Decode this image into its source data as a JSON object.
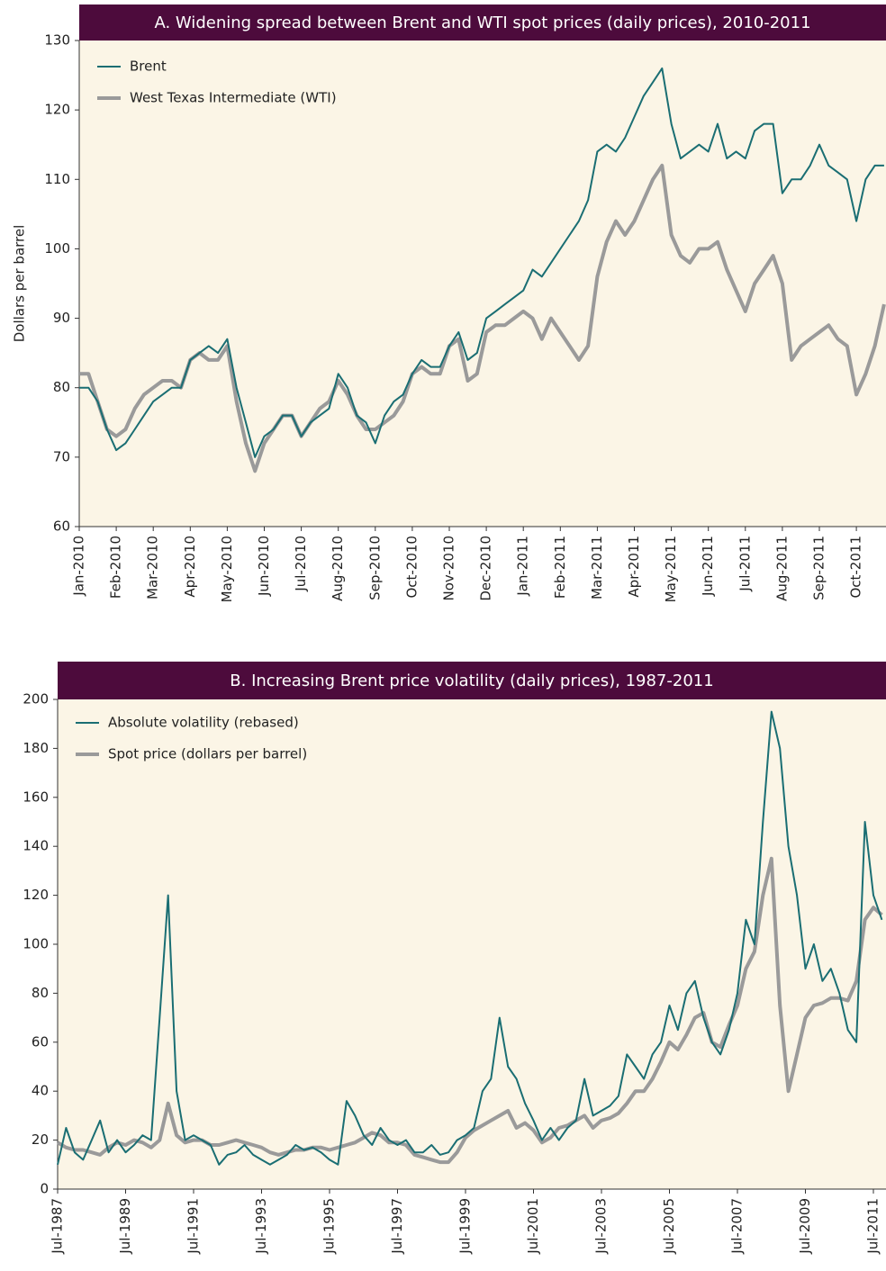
{
  "chart_data": [
    {
      "type": "line",
      "title": "A.  Widening spread between Brent and WTI spot prices (daily prices), 2010-2011",
      "y_label": "Dollars per barrel",
      "categories": [
        "Jan-2010",
        null,
        null,
        null,
        "Feb-2010",
        null,
        null,
        null,
        "Mar-2010",
        null,
        null,
        null,
        "Apr-2010",
        null,
        null,
        null,
        "May-2010",
        null,
        null,
        null,
        "Jun-2010",
        null,
        null,
        null,
        "Jul-2010",
        null,
        null,
        null,
        "Aug-2010",
        null,
        null,
        null,
        "Sep-2010",
        null,
        null,
        null,
        "Oct-2010",
        null,
        null,
        null,
        "Nov-2010",
        null,
        null,
        null,
        "Dec-2010",
        null,
        null,
        null,
        "Jan-2011",
        null,
        null,
        null,
        "Feb-2011",
        null,
        null,
        null,
        "Mar-2011",
        null,
        null,
        null,
        "Apr-2011",
        null,
        null,
        null,
        "May-2011",
        null,
        null,
        null,
        "Jun-2011",
        null,
        null,
        null,
        "Jul-2011",
        null,
        null,
        null,
        "Aug-2011",
        null,
        null,
        null,
        "Sep-2011",
        null,
        null,
        null,
        "Oct-2011",
        null,
        null,
        null
      ],
      "series": [
        {
          "name": "Brent",
          "color": "#1a6e73",
          "width": 2,
          "values": [
            80,
            80,
            78,
            74,
            71,
            72,
            74,
            76,
            78,
            79,
            80,
            80,
            84,
            85,
            86,
            85,
            87,
            80,
            75,
            70,
            73,
            74,
            76,
            76,
            73,
            75,
            76,
            77,
            82,
            80,
            76,
            75,
            72,
            76,
            78,
            79,
            82,
            84,
            83,
            83,
            86,
            88,
            84,
            85,
            90,
            91,
            92,
            93,
            94,
            97,
            96,
            98,
            100,
            102,
            104,
            107,
            114,
            115,
            114,
            116,
            119,
            122,
            124,
            126,
            118,
            113,
            114,
            115,
            114,
            118,
            113,
            114,
            113,
            117,
            118,
            118,
            108,
            110,
            110,
            112,
            115,
            112,
            111,
            110,
            104,
            110,
            112,
            112
          ]
        },
        {
          "name": "West Texas Intermediate (WTI)",
          "color": "#9a9a9a",
          "width": 4,
          "values": [
            82,
            82,
            78,
            74,
            73,
            74,
            77,
            79,
            80,
            81,
            81,
            80,
            84,
            85,
            84,
            84,
            86,
            78,
            72,
            68,
            72,
            74,
            76,
            76,
            73,
            75,
            77,
            78,
            81,
            79,
            76,
            74,
            74,
            75,
            76,
            78,
            82,
            83,
            82,
            82,
            86,
            87,
            81,
            82,
            88,
            89,
            89,
            90,
            91,
            90,
            87,
            90,
            88,
            86,
            84,
            86,
            96,
            101,
            104,
            102,
            104,
            107,
            110,
            112,
            102,
            99,
            98,
            100,
            100,
            101,
            97,
            94,
            91,
            95,
            97,
            99,
            95,
            84,
            86,
            87,
            88,
            89,
            87,
            86,
            79,
            82,
            86,
            92
          ]
        }
      ],
      "ylim": [
        60,
        130
      ],
      "yticks": [
        60,
        70,
        80,
        90,
        100,
        110,
        120,
        130
      ]
    },
    {
      "type": "line",
      "title": "B.  Increasing Brent price volatility (daily prices), 1987-2011",
      "categories": [
        "Jul-1987",
        null,
        null,
        null,
        null,
        null,
        null,
        null,
        "Jul-1989",
        null,
        null,
        null,
        null,
        null,
        null,
        null,
        "Jul-1991",
        null,
        null,
        null,
        null,
        null,
        null,
        null,
        "Jul-1993",
        null,
        null,
        null,
        null,
        null,
        null,
        null,
        "Jul-1995",
        null,
        null,
        null,
        null,
        null,
        null,
        null,
        "Jul-1997",
        null,
        null,
        null,
        null,
        null,
        null,
        null,
        "Jul-1999",
        null,
        null,
        null,
        null,
        null,
        null,
        null,
        "Jul-2001",
        null,
        null,
        null,
        null,
        null,
        null,
        null,
        "Jul-2003",
        null,
        null,
        null,
        null,
        null,
        null,
        null,
        "Jul-2005",
        null,
        null,
        null,
        null,
        null,
        null,
        null,
        "Jul-2007",
        null,
        null,
        null,
        null,
        null,
        null,
        null,
        "Jul-2009",
        null,
        null,
        null,
        null,
        null,
        null,
        null,
        "Jul-2011",
        null
      ],
      "series": [
        {
          "name": "Absolute volatility (rebased)",
          "color": "#1a6e73",
          "width": 2,
          "values": [
            10,
            25,
            15,
            12,
            20,
            28,
            15,
            20,
            15,
            18,
            22,
            20,
            70,
            120,
            40,
            20,
            22,
            20,
            18,
            10,
            14,
            15,
            18,
            14,
            12,
            10,
            12,
            14,
            18,
            16,
            17,
            15,
            12,
            10,
            36,
            30,
            22,
            18,
            25,
            20,
            18,
            20,
            15,
            15,
            18,
            14,
            15,
            20,
            22,
            25,
            40,
            45,
            70,
            50,
            45,
            35,
            28,
            20,
            25,
            20,
            25,
            28,
            45,
            30,
            32,
            34,
            38,
            55,
            50,
            45,
            55,
            60,
            75,
            65,
            80,
            85,
            70,
            60,
            55,
            65,
            80,
            110,
            100,
            150,
            195,
            180,
            140,
            120,
            90,
            100,
            85,
            90,
            80,
            65,
            60,
            150,
            120,
            110
          ]
        },
        {
          "name": "Spot price (dollars per barrel)",
          "color": "#9a9a9a",
          "width": 4,
          "values": [
            19,
            17,
            16,
            16,
            15,
            14,
            17,
            19,
            18,
            20,
            19,
            17,
            20,
            35,
            22,
            19,
            20,
            20,
            18,
            18,
            19,
            20,
            19,
            18,
            17,
            15,
            14,
            15,
            16,
            16,
            17,
            17,
            16,
            17,
            18,
            19,
            21,
            23,
            22,
            19,
            19,
            18,
            14,
            13,
            12,
            11,
            11,
            15,
            21,
            24,
            26,
            28,
            30,
            32,
            25,
            27,
            24,
            19,
            21,
            25,
            26,
            28,
            30,
            25,
            28,
            29,
            31,
            35,
            40,
            40,
            45,
            52,
            60,
            57,
            63,
            70,
            72,
            60,
            58,
            67,
            75,
            90,
            97,
            120,
            135,
            75,
            40,
            55,
            70,
            75,
            76,
            78,
            78,
            77,
            85,
            110,
            115,
            112
          ]
        }
      ],
      "ylim": [
        0,
        200
      ],
      "yticks": [
        0,
        20,
        40,
        60,
        80,
        100,
        120,
        140,
        160,
        180,
        200
      ]
    }
  ]
}
